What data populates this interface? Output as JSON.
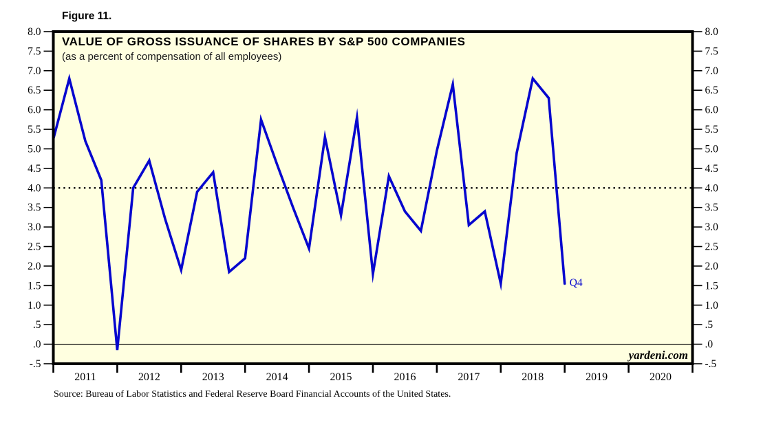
{
  "figure": {
    "label": "Figure 11."
  },
  "chart": {
    "title": "VALUE OF GROSS ISSUANCE OF SHARES BY S&P 500 COMPANIES",
    "subtitle": "(as a percent of compensation of all employees)",
    "watermark": "yardeni.com",
    "end_label": "Q4",
    "source": "Source: Bureau of Labor Statistics and Federal Reserve Board Financial Accounts of the United States.",
    "colors": {
      "line": "#0606CE",
      "plot_background": "#FFFFE0",
      "axis": "#000000",
      "end_label": "#0606CE",
      "reference_line": "#000000",
      "zero_line": "#000000"
    }
  },
  "chart_data": {
    "type": "line",
    "title": "VALUE OF GROSS ISSUANCE OF SHARES BY S&P 500 COMPANIES",
    "subtitle": "(as a percent of compensation of all employees)",
    "x": [
      "2010 Q4",
      "2011 Q1",
      "2011 Q2",
      "2011 Q3",
      "2011 Q4",
      "2012 Q1",
      "2012 Q2",
      "2012 Q3",
      "2012 Q4",
      "2013 Q1",
      "2013 Q2",
      "2013 Q3",
      "2013 Q4",
      "2014 Q1",
      "2014 Q2",
      "2014 Q3",
      "2014 Q4",
      "2015 Q1",
      "2015 Q2",
      "2015 Q3",
      "2015 Q4",
      "2016 Q1",
      "2016 Q2",
      "2016 Q3",
      "2016 Q4",
      "2017 Q1",
      "2017 Q2",
      "2017 Q3",
      "2017 Q4",
      "2018 Q1",
      "2018 Q2",
      "2018 Q3",
      "2018 Q4"
    ],
    "values": [
      5.25,
      6.8,
      5.2,
      4.2,
      -0.15,
      4.0,
      4.7,
      3.2,
      1.9,
      3.9,
      4.4,
      1.85,
      2.2,
      5.75,
      4.6,
      3.5,
      2.45,
      5.3,
      3.3,
      5.8,
      1.8,
      4.3,
      3.4,
      2.9,
      4.95,
      6.65,
      3.05,
      3.4,
      1.55,
      4.9,
      6.8,
      6.3,
      1.55
    ],
    "ylim": [
      -0.5,
      8.0
    ],
    "y_tick_step": 0.5,
    "y_tick_labels": [
      "8.0",
      "7.5",
      "7.0",
      "6.5",
      "6.0",
      "5.5",
      "5.0",
      "4.5",
      "4.0",
      "3.5",
      "3.0",
      "2.5",
      "2.0",
      "1.5",
      "1.0",
      ".5",
      ".0",
      "-.5"
    ],
    "y_axis_sides": "both",
    "x_year_labels": [
      "2011",
      "2012",
      "2013",
      "2014",
      "2015",
      "2016",
      "2017",
      "2018",
      "2019",
      "2020"
    ],
    "reference_line": 4.0,
    "reference_line_style": "dotted",
    "zero_line": true,
    "grid": false,
    "legend": "none",
    "annotation": {
      "text": "Q4",
      "at": "last-point"
    }
  }
}
